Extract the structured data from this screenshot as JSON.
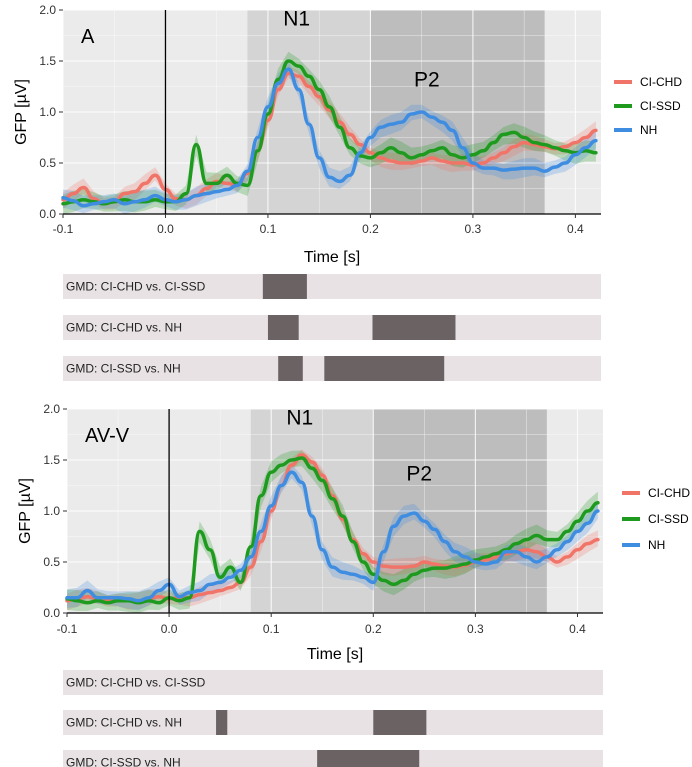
{
  "colors": {
    "CI-CHD": "#f07468",
    "CI-SSD": "#1e9b1e",
    "NH": "#3f8de0",
    "panel_bg": "#ebebeb",
    "shade_light": "#d4d4d4",
    "shade_dark": "#bdbdbd",
    "gmd_track": "#e8e2e4",
    "gmd_sig": "#6b6363"
  },
  "chart_data": [
    {
      "type": "line",
      "panel_label": "A",
      "xlabel": "Time [s]",
      "ylabel": "GFP [µV]",
      "xlim": [
        -0.1,
        0.425
      ],
      "ylim": [
        0,
        2.0
      ],
      "x_ticks": [
        -0.1,
        0.0,
        0.1,
        0.2,
        0.3,
        0.4
      ],
      "x_tick_labels": [
        "-0.1",
        "0.0",
        "0.1",
        "0.2",
        "0.3",
        "0.4"
      ],
      "y_ticks": [
        0.0,
        0.5,
        1.0,
        1.5,
        2.0
      ],
      "y_tick_labels": [
        "0.0",
        "0.5",
        "1.0",
        "1.5",
        "2.0"
      ],
      "grid": true,
      "legend_position": "right",
      "shaded_windows": [
        {
          "label": "N1",
          "range": [
            0.08,
            0.2
          ]
        },
        {
          "label": "P2",
          "range": [
            0.2,
            0.37
          ]
        }
      ],
      "peak_labels": [
        {
          "text": "N1",
          "x": 0.128,
          "y": 1.85
        },
        {
          "text": "P2",
          "x": 0.255,
          "y": 1.25
        }
      ],
      "x": [
        -0.1,
        -0.09,
        -0.08,
        -0.07,
        -0.06,
        -0.05,
        -0.04,
        -0.03,
        -0.02,
        -0.01,
        0.0,
        0.01,
        0.02,
        0.03,
        0.04,
        0.05,
        0.06,
        0.07,
        0.08,
        0.09,
        0.1,
        0.11,
        0.12,
        0.13,
        0.14,
        0.15,
        0.16,
        0.17,
        0.18,
        0.19,
        0.2,
        0.21,
        0.22,
        0.23,
        0.24,
        0.25,
        0.26,
        0.27,
        0.28,
        0.29,
        0.3,
        0.31,
        0.32,
        0.33,
        0.34,
        0.35,
        0.36,
        0.37,
        0.38,
        0.39,
        0.4,
        0.41,
        0.42
      ],
      "series": [
        {
          "name": "CI-CHD",
          "values": [
            0.14,
            0.2,
            0.26,
            0.15,
            0.1,
            0.12,
            0.2,
            0.22,
            0.3,
            0.38,
            0.24,
            0.15,
            0.14,
            0.18,
            0.25,
            0.32,
            0.3,
            0.28,
            0.4,
            0.62,
            0.92,
            1.22,
            1.38,
            1.35,
            1.25,
            1.15,
            1.02,
            0.9,
            0.78,
            0.68,
            0.6,
            0.55,
            0.52,
            0.5,
            0.5,
            0.52,
            0.55,
            0.52,
            0.5,
            0.5,
            0.48,
            0.5,
            0.55,
            0.6,
            0.66,
            0.7,
            0.68,
            0.66,
            0.64,
            0.66,
            0.7,
            0.75,
            0.82
          ]
        },
        {
          "name": "CI-SSD",
          "values": [
            0.1,
            0.12,
            0.14,
            0.12,
            0.1,
            0.12,
            0.14,
            0.12,
            0.12,
            0.14,
            0.12,
            0.12,
            0.2,
            0.68,
            0.3,
            0.3,
            0.38,
            0.3,
            0.28,
            0.62,
            0.98,
            1.32,
            1.5,
            1.45,
            1.35,
            1.22,
            1.05,
            0.85,
            0.65,
            0.57,
            0.55,
            0.6,
            0.65,
            0.6,
            0.55,
            0.58,
            0.62,
            0.65,
            0.58,
            0.55,
            0.58,
            0.62,
            0.7,
            0.78,
            0.8,
            0.75,
            0.7,
            0.68,
            0.65,
            0.62,
            0.6,
            0.62,
            0.6
          ]
        },
        {
          "name": "NH",
          "values": [
            0.16,
            0.13,
            0.08,
            0.1,
            0.12,
            0.14,
            0.1,
            0.12,
            0.14,
            0.18,
            0.14,
            0.12,
            0.14,
            0.18,
            0.2,
            0.22,
            0.24,
            0.28,
            0.42,
            0.75,
            1.05,
            1.28,
            1.42,
            1.22,
            0.88,
            0.55,
            0.36,
            0.32,
            0.38,
            0.6,
            0.75,
            0.85,
            0.88,
            0.9,
            0.98,
            1.0,
            0.95,
            0.9,
            0.82,
            0.65,
            0.5,
            0.45,
            0.45,
            0.43,
            0.44,
            0.45,
            0.45,
            0.42,
            0.46,
            0.5,
            0.58,
            0.65,
            0.72
          ]
        }
      ]
    },
    {
      "type": "line",
      "panel_label": "AV-V",
      "xlabel": "Time [s]",
      "ylabel": "GFP [µV]",
      "xlim": [
        -0.1,
        0.425
      ],
      "ylim": [
        0,
        2.0
      ],
      "x_ticks": [
        -0.1,
        0.0,
        0.1,
        0.2,
        0.3,
        0.4
      ],
      "x_tick_labels": [
        "-0.1",
        "0.0",
        "0.1",
        "0.2",
        "0.3",
        "0.4"
      ],
      "y_ticks": [
        0.0,
        0.5,
        1.0,
        1.5,
        2.0
      ],
      "y_tick_labels": [
        "0.0",
        "0.5",
        "1.0",
        "1.5",
        "2.0"
      ],
      "grid": true,
      "legend_position": "right",
      "shaded_windows": [
        {
          "label": "N1",
          "range": [
            0.08,
            0.2
          ]
        },
        {
          "label": "P2",
          "range": [
            0.2,
            0.37
          ]
        }
      ],
      "peak_labels": [
        {
          "text": "N1",
          "x": 0.128,
          "y": 1.85
        },
        {
          "text": "P2",
          "x": 0.245,
          "y": 1.3
        }
      ],
      "x": [
        -0.1,
        -0.09,
        -0.08,
        -0.07,
        -0.06,
        -0.05,
        -0.04,
        -0.03,
        -0.02,
        -0.01,
        0.0,
        0.01,
        0.02,
        0.03,
        0.04,
        0.05,
        0.06,
        0.07,
        0.08,
        0.09,
        0.1,
        0.11,
        0.12,
        0.13,
        0.14,
        0.15,
        0.16,
        0.17,
        0.18,
        0.19,
        0.2,
        0.21,
        0.22,
        0.23,
        0.24,
        0.25,
        0.26,
        0.27,
        0.28,
        0.29,
        0.3,
        0.31,
        0.32,
        0.33,
        0.34,
        0.35,
        0.36,
        0.37,
        0.38,
        0.39,
        0.4,
        0.41,
        0.42
      ],
      "series": [
        {
          "name": "CI-CHD",
          "values": [
            0.12,
            0.14,
            0.16,
            0.14,
            0.12,
            0.14,
            0.12,
            0.12,
            0.14,
            0.16,
            0.14,
            0.15,
            0.15,
            0.18,
            0.2,
            0.22,
            0.25,
            0.3,
            0.45,
            0.7,
            1.0,
            1.25,
            1.45,
            1.55,
            1.48,
            1.35,
            1.15,
            0.92,
            0.72,
            0.58,
            0.5,
            0.46,
            0.45,
            0.45,
            0.46,
            0.5,
            0.48,
            0.46,
            0.45,
            0.47,
            0.5,
            0.52,
            0.55,
            0.58,
            0.6,
            0.62,
            0.6,
            0.55,
            0.5,
            0.55,
            0.62,
            0.68,
            0.72
          ]
        },
        {
          "name": "CI-SSD",
          "values": [
            0.14,
            0.12,
            0.1,
            0.12,
            0.1,
            0.12,
            0.12,
            0.1,
            0.12,
            0.1,
            0.15,
            0.12,
            0.15,
            0.8,
            0.62,
            0.35,
            0.45,
            0.3,
            0.65,
            1.15,
            1.38,
            1.45,
            1.5,
            1.52,
            1.42,
            1.3,
            1.12,
            0.95,
            0.7,
            0.5,
            0.38,
            0.32,
            0.28,
            0.32,
            0.38,
            0.42,
            0.44,
            0.44,
            0.46,
            0.48,
            0.52,
            0.55,
            0.58,
            0.62,
            0.68,
            0.72,
            0.76,
            0.72,
            0.72,
            0.8,
            0.9,
            1.0,
            1.08
          ]
        },
        {
          "name": "NH",
          "values": [
            0.15,
            0.15,
            0.22,
            0.15,
            0.15,
            0.15,
            0.14,
            0.12,
            0.15,
            0.22,
            0.28,
            0.16,
            0.2,
            0.22,
            0.28,
            0.3,
            0.35,
            0.42,
            0.55,
            0.8,
            1.05,
            1.25,
            1.38,
            1.28,
            0.95,
            0.62,
            0.45,
            0.4,
            0.38,
            0.35,
            0.3,
            0.6,
            0.85,
            0.95,
            0.98,
            0.9,
            0.82,
            0.7,
            0.6,
            0.55,
            0.5,
            0.48,
            0.5,
            0.6,
            0.6,
            0.55,
            0.5,
            0.55,
            0.62,
            0.7,
            0.8,
            0.88,
            1.0
          ]
        }
      ]
    }
  ],
  "gmd": [
    {
      "rows": [
        {
          "label": "GMD: CI-CHD vs. CI-SSD",
          "segments": [
            [
              0.095,
              0.138
            ]
          ]
        },
        {
          "label": "GMD: CI-CHD vs. NH",
          "segments": [
            [
              0.1,
              0.13
            ],
            [
              0.202,
              0.283
            ]
          ]
        },
        {
          "label": "GMD: CI-SSD vs. NH",
          "segments": [
            [
              0.11,
              0.134
            ],
            [
              0.155,
              0.272
            ]
          ]
        }
      ]
    },
    {
      "rows": [
        {
          "label": "GMD: CI-CHD vs. CI-SSD",
          "segments": []
        },
        {
          "label": "GMD: CI-CHD vs. NH",
          "segments": [
            [
              0.046,
              0.057
            ],
            [
              0.2,
              0.252
            ]
          ]
        },
        {
          "label": "GMD: CI-SSD vs. NH",
          "segments": [
            [
              0.145,
              0.245
            ]
          ]
        }
      ]
    }
  ]
}
